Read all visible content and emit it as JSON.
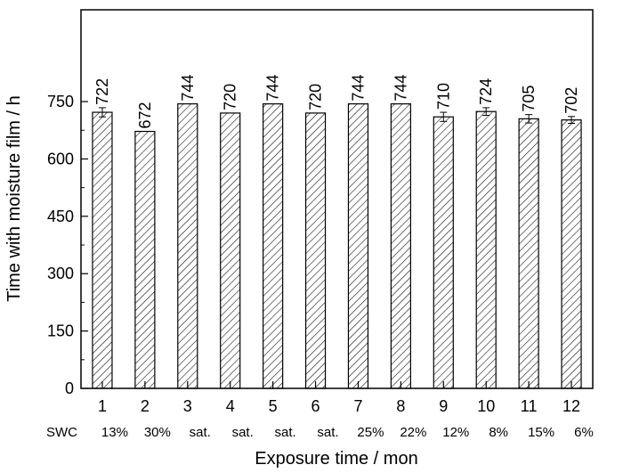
{
  "chart_data": {
    "type": "bar",
    "title": "",
    "xlabel": "Exposure time / mon",
    "ylabel": "Time with moisture film / h",
    "ylim": [
      0,
      990
    ],
    "yticks": [
      0,
      150,
      300,
      450,
      600,
      750
    ],
    "categories": [
      "1",
      "2",
      "3",
      "4",
      "5",
      "6",
      "7",
      "8",
      "9",
      "10",
      "11",
      "12"
    ],
    "values": [
      722,
      672,
      744,
      720,
      744,
      720,
      744,
      744,
      710,
      724,
      705,
      702
    ],
    "value_labels": [
      "722",
      "672",
      "744",
      "720",
      "744",
      "720",
      "744",
      "744",
      "710",
      "724",
      "705",
      "702"
    ],
    "error": [
      12,
      0,
      0,
      0,
      0,
      0,
      0,
      0,
      12,
      10,
      11,
      9
    ],
    "bar_fill": "diagonal hatch",
    "grid": false,
    "legend": "none",
    "swc": {
      "label": "SWC",
      "values": [
        "13%",
        "30%",
        "sat.",
        "sat.",
        "sat.",
        "sat.",
        "25%",
        "22%",
        "12%",
        "8%",
        "15%",
        "6%"
      ]
    }
  }
}
